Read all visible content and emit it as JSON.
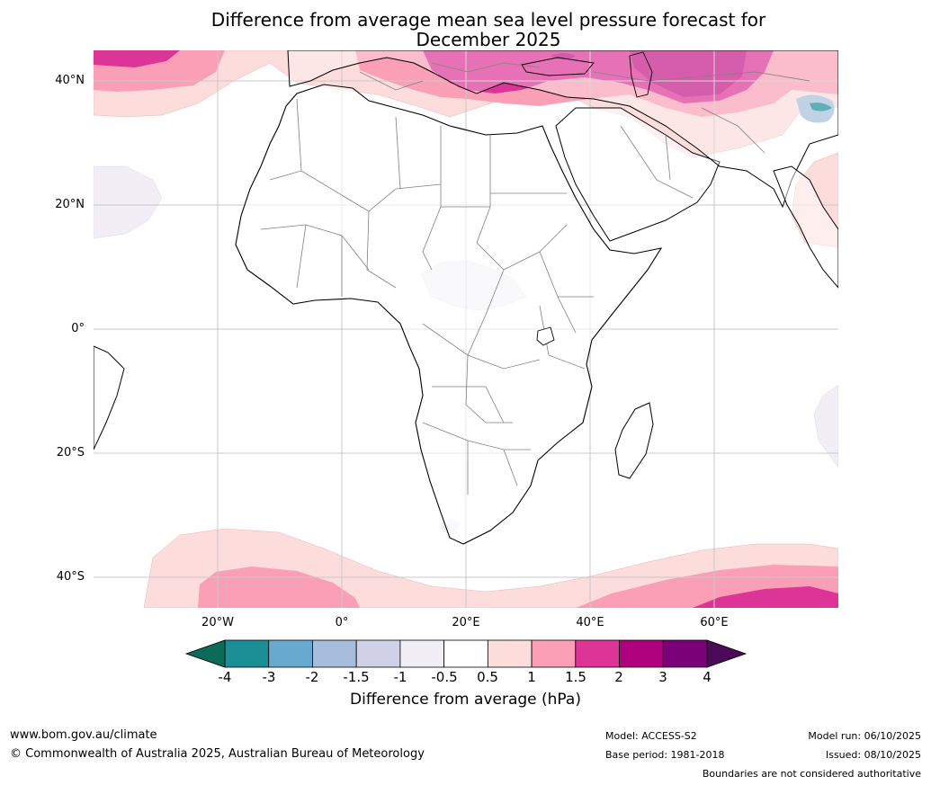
{
  "title": {
    "line1": "Difference from average mean sea level pressure forecast for",
    "line2": "December 2025"
  },
  "map": {
    "region": "Africa",
    "lat_labels": [
      "40°N",
      "20°N",
      "0°",
      "20°S",
      "40°S"
    ],
    "lon_labels": [
      "20°W",
      "0°",
      "20°E",
      "40°E",
      "60°E"
    ],
    "land_color": "#ffffff",
    "coast_color": "#000000",
    "border_color": "#808080",
    "grid_color": "#c8c8c8"
  },
  "colorbar": {
    "label": "Difference from average (hPa)",
    "ticks": [
      "-4",
      "-3",
      "-2",
      "-1.5",
      "-1",
      "-0.5",
      "0.5",
      "1",
      "1.5",
      "2",
      "3",
      "4"
    ],
    "under_color": "#0b6b58",
    "over_color": "#4a0a58",
    "colors": [
      "#1b8f96",
      "#67a9cf",
      "#a6bddb",
      "#d0d1e6",
      "#f1eef6",
      "#ffffff",
      "#fddcdc",
      "#fa9fb5",
      "#dd3497",
      "#ae017e",
      "#7a0177"
    ]
  },
  "footer": {
    "website": "www.bom.gov.au/climate",
    "copyright": "© Commonwealth of Australia 2025, Australian Bureau of Meteorology",
    "model": "Model: ACCESS-S2",
    "base_period": "Base period: 1981-2018",
    "model_run": "Model run: 06/10/2025",
    "issued": "Issued: 08/10/2025",
    "disclaimer": "Boundaries are not considered authoritative"
  }
}
